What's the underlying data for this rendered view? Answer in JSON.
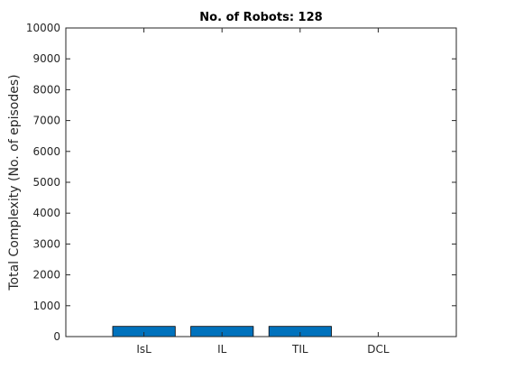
{
  "chart_data": {
    "type": "bar",
    "title": "No. of Robots: 128",
    "xlabel": "",
    "ylabel": "Total Complexity (No. of episodes)",
    "categories": [
      "IsL",
      "IL",
      "TIL",
      "DCL"
    ],
    "values": [
      330,
      330,
      330,
      0
    ],
    "ylim": [
      0,
      10000
    ],
    "yticks": [
      0,
      1000,
      2000,
      3000,
      4000,
      5000,
      6000,
      7000,
      8000,
      9000,
      10000
    ],
    "bar_color": "#0072BD",
    "grid": false,
    "legend": null
  }
}
